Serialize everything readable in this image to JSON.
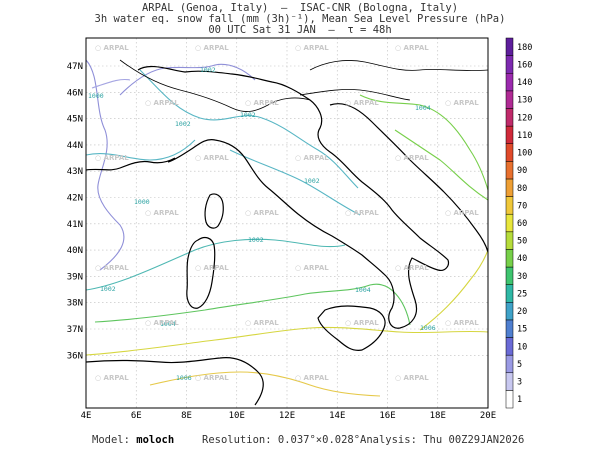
{
  "header": {
    "line1": "ARPAL (Genoa, Italy)  —  ISAC-CNR (Bologna, Italy)",
    "line2": "3h water eq. snow fall (mm (3h)⁻¹), Mean Sea Level Pressure (hPa)",
    "line3": "00 UTC Sat 31 JAN  —  τ = 48h"
  },
  "map": {
    "lon_ticks": [
      "4E",
      "6E",
      "8E",
      "10E",
      "12E",
      "14E",
      "16E",
      "18E",
      "20E"
    ],
    "lat_ticks": [
      "47N",
      "46N",
      "45N",
      "44N",
      "43N",
      "42N",
      "41N",
      "40N",
      "39N",
      "38N",
      "37N",
      "36N"
    ],
    "watermark": "ARPAL",
    "contour_labels": [
      "1000",
      "1002",
      "1002",
      "1002",
      "1000",
      "1002",
      "1002",
      "1002",
      "1004",
      "1004",
      "1004",
      "1006",
      "1006"
    ],
    "colors": {
      "coast": "#000000",
      "grid": "#bdbdbd"
    }
  },
  "colorbar": {
    "levels": [
      "1",
      "3",
      "5",
      "10",
      "15",
      "20",
      "25",
      "30",
      "40",
      "50",
      "60",
      "70",
      "80",
      "90",
      "100",
      "110",
      "120",
      "130",
      "140",
      "160",
      "180"
    ],
    "colors": [
      "#ffffff",
      "#c8c8f0",
      "#9a9ae4",
      "#6a6ad6",
      "#4f7fd0",
      "#3fa2c8",
      "#2fb8a6",
      "#3ec46f",
      "#77d049",
      "#b6dc3b",
      "#e8e63c",
      "#f0c83a",
      "#ee9f34",
      "#e8702e",
      "#e04a2a",
      "#d02a3a",
      "#c02a6a",
      "#b02a94",
      "#9b2aae",
      "#7d2ab0",
      "#5e1e9c"
    ]
  },
  "footer": {
    "model_label": "Model:",
    "model_value": "moloch",
    "resolution_label": "Resolution:",
    "resolution_value": "0.037°×0.028°",
    "analysis_label": "Analysis:",
    "analysis_value": "Thu 00Z29JAN2026"
  }
}
